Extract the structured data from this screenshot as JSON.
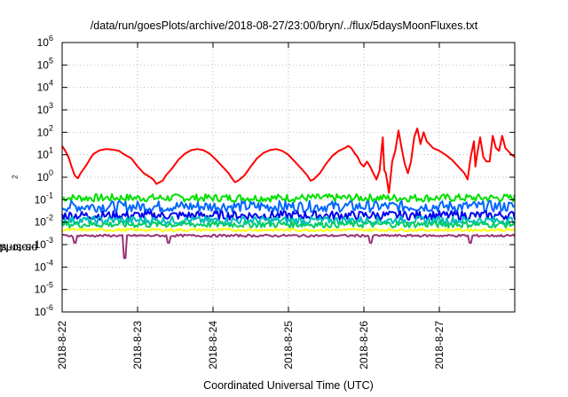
{
  "chart_data": {
    "type": "line",
    "title": "/data/run/goesPlots/archive/2018-08-27/23:00/bryn/../flux/5daysMoonFluxes.txt",
    "xlabel": "Coordinated Universal Time (UTC)",
    "ylabel": {
      "pre": "protons/cm",
      "sup": "2",
      "post": "-s-sr-MeV"
    },
    "y_scale": "log",
    "ylim": [
      1e-06,
      1000000.0
    ],
    "xlim": [
      "2018-08-22",
      "2018-08-28"
    ],
    "x_ticks": [
      "2018-8-22",
      "2018-8-23",
      "2018-8-24",
      "2018-8-25",
      "2018-8-26",
      "2018-8-27"
    ],
    "y_ticks": [
      {
        "base": "10",
        "exp": "-6"
      },
      {
        "base": "10",
        "exp": "-5"
      },
      {
        "base": "10",
        "exp": "-4"
      },
      {
        "base": "10",
        "exp": "-3"
      },
      {
        "base": "10",
        "exp": "-2"
      },
      {
        "base": "10",
        "exp": "-1"
      },
      {
        "base": "10",
        "exp": "0"
      },
      {
        "base": "10",
        "exp": "1"
      },
      {
        "base": "10",
        "exp": "2"
      },
      {
        "base": "10",
        "exp": "3"
      },
      {
        "base": "10",
        "exp": "4"
      },
      {
        "base": "10",
        "exp": "5"
      },
      {
        "base": "10",
        "exp": "6"
      }
    ],
    "grid": true,
    "series": [
      {
        "color": "#ff0000",
        "points": [
          [
            "2018-08-22T00:00",
            25
          ],
          [
            "2018-08-22T01:00",
            15
          ],
          [
            "2018-08-22T02:00",
            8
          ],
          [
            "2018-08-22T03:00",
            3
          ],
          [
            "2018-08-22T04:00",
            1.2
          ],
          [
            "2018-08-22T05:00",
            0.9
          ],
          [
            "2018-08-22T06:00",
            1.6
          ],
          [
            "2018-08-22T07:00",
            2.5
          ],
          [
            "2018-08-22T08:00",
            4
          ],
          [
            "2018-08-22T09:00",
            7
          ],
          [
            "2018-08-22T10:00",
            11
          ],
          [
            "2018-08-22T12:00",
            16
          ],
          [
            "2018-08-22T14:00",
            18
          ],
          [
            "2018-08-22T16:00",
            17
          ],
          [
            "2018-08-22T18:00",
            15
          ],
          [
            "2018-08-22T20:00",
            10
          ],
          [
            "2018-08-22T22:00",
            7
          ],
          [
            "2018-08-23T00:00",
            3
          ],
          [
            "2018-08-23T02:00",
            1.5
          ],
          [
            "2018-08-23T04:00",
            1
          ],
          [
            "2018-08-23T05:00",
            0.8
          ],
          [
            "2018-08-23T06:00",
            0.5
          ],
          [
            "2018-08-23T07:00",
            0.6
          ],
          [
            "2018-08-23T08:00",
            0.7
          ],
          [
            "2018-08-23T09:00",
            1.2
          ],
          [
            "2018-08-23T11:00",
            2.5
          ],
          [
            "2018-08-23T13:00",
            6
          ],
          [
            "2018-08-23T15:00",
            11
          ],
          [
            "2018-08-23T17:00",
            16
          ],
          [
            "2018-08-23T19:00",
            18
          ],
          [
            "2018-08-23T21:00",
            16
          ],
          [
            "2018-08-23T23:00",
            11
          ],
          [
            "2018-08-24T01:00",
            6
          ],
          [
            "2018-08-24T03:00",
            3
          ],
          [
            "2018-08-24T05:00",
            1.5
          ],
          [
            "2018-08-24T06:00",
            0.9
          ],
          [
            "2018-08-24T07:00",
            0.6
          ],
          [
            "2018-08-24T08:00",
            0.7
          ],
          [
            "2018-08-24T10:00",
            1.2
          ],
          [
            "2018-08-24T12:00",
            3
          ],
          [
            "2018-08-24T14:00",
            7
          ],
          [
            "2018-08-24T16:00",
            12
          ],
          [
            "2018-08-24T18:00",
            16
          ],
          [
            "2018-08-24T20:00",
            18
          ],
          [
            "2018-08-24T22:00",
            15
          ],
          [
            "2018-08-25T00:00",
            10
          ],
          [
            "2018-08-25T02:00",
            5
          ],
          [
            "2018-08-25T04:00",
            2.5
          ],
          [
            "2018-08-25T06:00",
            1.2
          ],
          [
            "2018-08-25T07:00",
            0.7
          ],
          [
            "2018-08-25T08:00",
            0.8
          ],
          [
            "2018-08-25T10:00",
            1.5
          ],
          [
            "2018-08-25T12:00",
            4
          ],
          [
            "2018-08-25T14:00",
            9
          ],
          [
            "2018-08-25T16:00",
            15
          ],
          [
            "2018-08-25T18:00",
            20
          ],
          [
            "2018-08-25T19:00",
            25
          ],
          [
            "2018-08-25T20:00",
            20
          ],
          [
            "2018-08-25T21:00",
            12
          ],
          [
            "2018-08-25T22:00",
            8
          ],
          [
            "2018-08-25T23:00",
            4
          ],
          [
            "2018-08-26T00:00",
            3
          ],
          [
            "2018-08-26T01:00",
            5
          ],
          [
            "2018-08-26T02:00",
            3
          ],
          [
            "2018-08-26T03:00",
            1.5
          ],
          [
            "2018-08-26T04:00",
            0.8
          ],
          [
            "2018-08-26T05:00",
            2
          ],
          [
            "2018-08-26T06:00",
            60
          ],
          [
            "2018-08-26T06:30",
            2
          ],
          [
            "2018-08-26T07:00",
            1.5
          ],
          [
            "2018-08-26T08:00",
            0.2
          ],
          [
            "2018-08-26T09:00",
            5
          ],
          [
            "2018-08-26T10:00",
            15
          ],
          [
            "2018-08-26T11:00",
            120
          ],
          [
            "2018-08-26T12:00",
            20
          ],
          [
            "2018-08-26T13:00",
            4
          ],
          [
            "2018-08-26T14:00",
            1.5
          ],
          [
            "2018-08-26T15:00",
            5
          ],
          [
            "2018-08-26T16:00",
            60
          ],
          [
            "2018-08-26T17:00",
            150
          ],
          [
            "2018-08-26T18:00",
            30
          ],
          [
            "2018-08-26T19:00",
            100
          ],
          [
            "2018-08-26T20:00",
            40
          ],
          [
            "2018-08-26T22:00",
            20
          ],
          [
            "2018-08-27T00:00",
            15
          ],
          [
            "2018-08-27T02:00",
            10
          ],
          [
            "2018-08-27T04:00",
            6
          ],
          [
            "2018-08-27T06:00",
            3
          ],
          [
            "2018-08-27T08:00",
            1.5
          ],
          [
            "2018-08-27T09:00",
            0.8
          ],
          [
            "2018-08-27T10:00",
            8
          ],
          [
            "2018-08-27T11:00",
            40
          ],
          [
            "2018-08-27T11:30",
            3
          ],
          [
            "2018-08-27T12:00",
            10
          ],
          [
            "2018-08-27T13:00",
            60
          ],
          [
            "2018-08-27T14:00",
            8
          ],
          [
            "2018-08-27T15:00",
            5
          ],
          [
            "2018-08-27T16:00",
            5
          ],
          [
            "2018-08-27T17:00",
            70
          ],
          [
            "2018-08-27T18:00",
            20
          ],
          [
            "2018-08-27T19:00",
            15
          ],
          [
            "2018-08-27T20:00",
            70
          ],
          [
            "2018-08-27T21:00",
            20
          ],
          [
            "2018-08-27T23:00",
            10
          ],
          [
            "2018-08-28T00:00",
            8
          ]
        ]
      },
      {
        "color": "#00e000",
        "base": 0.12,
        "amp": 0.35,
        "dips": []
      },
      {
        "color": "#0066ff",
        "base": 0.05,
        "amp": 0.5,
        "dips": []
      },
      {
        "color": "#0000ee",
        "base": 0.02,
        "amp": 0.4,
        "dips": []
      },
      {
        "color": "#00bbbb",
        "base": 0.012,
        "amp": 0.35,
        "dips": []
      },
      {
        "color": "#00cc66",
        "base": 0.008,
        "amp": 0.3,
        "dips": []
      },
      {
        "color": "#ffff00",
        "base": 0.0045,
        "amp": 0.12,
        "dips": []
      },
      {
        "color": "#993377",
        "base": 0.0025,
        "amp": 0.1,
        "dips": [
          [
            "2018-08-22T04:00",
            0.0012
          ],
          [
            "2018-08-22T20:00",
            0.00025
          ],
          [
            "2018-08-23T10:00",
            0.0012
          ],
          [
            "2018-08-26T02:00",
            0.0012
          ],
          [
            "2018-08-27T10:00",
            0.0012
          ]
        ]
      }
    ]
  }
}
